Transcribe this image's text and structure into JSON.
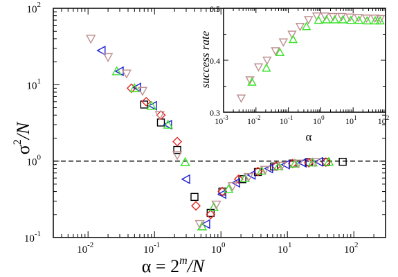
{
  "chart_data": [
    {
      "type": "scatter",
      "xscale": "log",
      "yscale": "log",
      "xlim": [
        0.003,
        300
      ],
      "ylim": [
        0.1,
        100
      ],
      "x_ticks": [
        "10",
        "10",
        "10",
        "10",
        "10"
      ],
      "x_tick_exponents": [
        "-2",
        "-1",
        "0",
        "1",
        "2"
      ],
      "y_ticks": [
        "10",
        "10",
        "10",
        "10"
      ],
      "y_tick_exponents": [
        "-1",
        "0",
        "1",
        "2"
      ],
      "xlabel": {
        "greek": "α",
        "text": " = 2",
        "sup": "m",
        "tail": "/N"
      },
      "ylabel": {
        "greek": "σ",
        "sup": "2",
        "tail": "/N"
      },
      "reference_line": {
        "y": 1,
        "style": "dashed"
      },
      "grid": false,
      "series": [
        {
          "marker": "square",
          "color": "#000000",
          "points": [
            [
              0.07,
              5.5
            ],
            [
              0.125,
              3.2
            ],
            [
              0.22,
              1.4
            ],
            [
              0.4,
              0.34
            ],
            [
              0.7,
              0.21
            ],
            [
              1.05,
              0.4
            ],
            [
              2.1,
              0.58
            ],
            [
              3.6,
              0.72
            ],
            [
              6.3,
              0.85
            ],
            [
              12,
              0.93
            ],
            [
              21,
              0.97
            ],
            [
              38,
              0.97
            ],
            [
              68,
              0.98
            ]
          ]
        },
        {
          "marker": "diamond",
          "color": "#e8211f",
          "points": [
            [
              0.045,
              9.0
            ],
            [
              0.075,
              6.0
            ],
            [
              0.125,
              4.0
            ],
            [
              0.22,
              1.8
            ],
            [
              0.42,
              0.26
            ],
            [
              0.7,
              0.2
            ],
            [
              1.05,
              0.4
            ],
            [
              1.85,
              0.58
            ],
            [
              3.6,
              0.73
            ],
            [
              6.8,
              0.86
            ],
            [
              12,
              0.93
            ],
            [
              21,
              0.95
            ],
            [
              38,
              0.97
            ]
          ]
        },
        {
          "marker": "triangle-left",
          "color": "#1c1cd6",
          "points": [
            [
              0.016,
              28
            ],
            [
              0.03,
              15
            ],
            [
              0.055,
              9.2
            ],
            [
              0.095,
              5.3
            ],
            [
              0.16,
              3.0
            ],
            [
              0.3,
              0.58
            ],
            [
              0.6,
              0.15
            ],
            [
              1.05,
              0.37
            ],
            [
              1.7,
              0.52
            ],
            [
              2.9,
              0.66
            ],
            [
              5.3,
              0.8
            ],
            [
              9.5,
              0.9
            ],
            [
              17,
              0.95
            ],
            [
              30,
              0.98
            ]
          ]
        },
        {
          "marker": "triangle-up",
          "color": "#39e028",
          "points": [
            [
              0.027,
              15
            ],
            [
              0.05,
              9.0
            ],
            [
              0.09,
              5.3
            ],
            [
              0.16,
              3.0
            ],
            [
              0.29,
              0.97
            ],
            [
              0.52,
              0.14
            ],
            [
              0.78,
              0.25
            ],
            [
              1.3,
              0.43
            ],
            [
              2.3,
              0.6
            ],
            [
              4.1,
              0.75
            ],
            [
              7.4,
              0.86
            ],
            [
              13,
              0.93
            ],
            [
              24,
              0.96
            ],
            [
              42,
              0.98
            ]
          ]
        },
        {
          "marker": "triangle-down",
          "color": "#bd8f8f",
          "points": [
            [
              0.011,
              40
            ],
            [
              0.02,
              23
            ],
            [
              0.038,
              14
            ],
            [
              0.066,
              8.3
            ],
            [
              0.12,
              4.0
            ],
            [
              0.22,
              1.2
            ],
            [
              0.48,
              0.15
            ],
            [
              0.85,
              0.27
            ],
            [
              1.5,
              0.47
            ],
            [
              2.6,
              0.62
            ],
            [
              4.6,
              0.77
            ],
            [
              8.2,
              0.87
            ],
            [
              14.5,
              0.93
            ],
            [
              26,
              0.97
            ]
          ]
        }
      ]
    },
    {
      "type": "scatter",
      "xscale": "log",
      "yscale": "linear",
      "xlim": [
        0.001,
        100
      ],
      "ylim": [
        0.3,
        0.5
      ],
      "x_ticks": [
        "10",
        "10",
        "10",
        "10",
        "10",
        "10"
      ],
      "x_tick_exponents": [
        "-3",
        "-2",
        "-1",
        "0",
        "1",
        "2"
      ],
      "y_ticks": [
        "0.3",
        "0.4",
        "0.5"
      ],
      "y_tick_values": [
        0.3,
        0.4,
        0.5
      ],
      "xlabel": "α",
      "ylabel": "success rate",
      "grid": false,
      "series": [
        {
          "marker": "triangle-down",
          "color": "#bd8f8f",
          "points": [
            [
              0.0035,
              0.327
            ],
            [
              0.0065,
              0.362
            ],
            [
              0.012,
              0.387
            ],
            [
              0.022,
              0.4
            ],
            [
              0.04,
              0.418
            ],
            [
              0.07,
              0.435
            ],
            [
              0.13,
              0.45
            ],
            [
              0.23,
              0.465
            ],
            [
              0.42,
              0.478
            ],
            [
              0.75,
              0.485
            ],
            [
              1.35,
              0.485
            ],
            [
              2.4,
              0.484
            ],
            [
              4.4,
              0.484
            ],
            [
              8,
              0.483
            ],
            [
              14.5,
              0.482
            ],
            [
              26,
              0.481
            ],
            [
              47,
              0.481
            ],
            [
              70,
              0.48
            ]
          ]
        },
        {
          "marker": "triangle-up",
          "color": "#39e028",
          "points": [
            [
              0.0075,
              0.358
            ],
            [
              0.021,
              0.385
            ],
            [
              0.055,
              0.415
            ],
            [
              0.14,
              0.44
            ],
            [
              0.36,
              0.465
            ],
            [
              0.85,
              0.477
            ],
            [
              1.5,
              0.478
            ],
            [
              2.7,
              0.478
            ],
            [
              4.8,
              0.478
            ],
            [
              8.5,
              0.477
            ],
            [
              15,
              0.477
            ],
            [
              27,
              0.476
            ],
            [
              48,
              0.476
            ],
            [
              68,
              0.476
            ]
          ]
        }
      ]
    }
  ]
}
